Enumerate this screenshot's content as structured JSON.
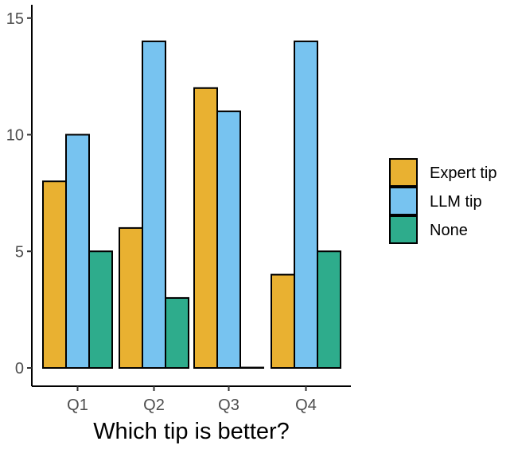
{
  "chart_data": {
    "type": "bar",
    "categories": [
      "Q1",
      "Q2",
      "Q3",
      "Q4"
    ],
    "series": [
      {
        "name": "Expert tip",
        "values": [
          8,
          6,
          12,
          4
        ],
        "color": "#E9B131"
      },
      {
        "name": "LLM tip",
        "values": [
          10,
          14,
          11,
          14
        ],
        "color": "#77C3F0"
      },
      {
        "name": "None",
        "values": [
          5,
          3,
          0,
          5
        ],
        "color": "#2EAC8C"
      }
    ],
    "title": "",
    "xlabel": "Which tip is better?",
    "ylabel": "",
    "ylim": [
      0,
      15.5
    ],
    "yticks": [
      0,
      5,
      10,
      15
    ],
    "grid": false,
    "legend_position": "right"
  }
}
